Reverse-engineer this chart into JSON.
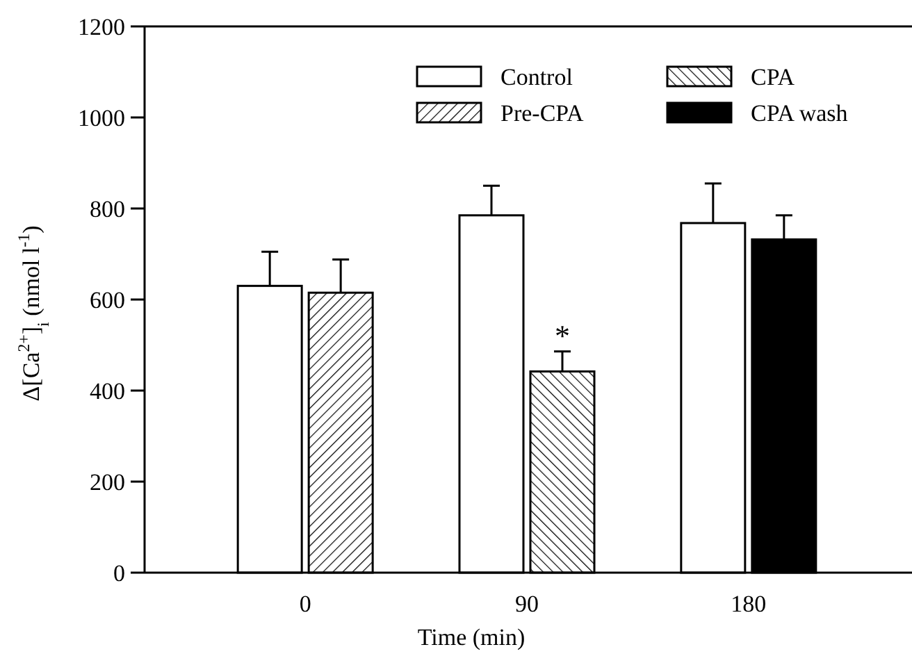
{
  "chart_data": {
    "type": "bar",
    "xlabel": "Time (min)",
    "ylabel": "Δ[Ca$^{2+}$]$_{i}$ (nmol l$^{-1}$)",
    "categories": [
      "0",
      "90",
      "180"
    ],
    "series": [
      {
        "name": "Control",
        "color": "#ffffff",
        "values": [
          630,
          785,
          768
        ],
        "errors": [
          75,
          65,
          87
        ]
      },
      {
        "name": "Pre-CPA",
        "color": "#000000",
        "values": [
          615,
          null,
          null
        ],
        "errors": [
          73,
          null,
          null
        ]
      },
      {
        "name": "CPA",
        "color": "#000000",
        "values": [
          null,
          442,
          null
        ],
        "errors": [
          null,
          44,
          null
        ]
      },
      {
        "name": "CPA wash",
        "color": "#000000",
        "values": [
          null,
          null,
          732
        ],
        "errors": [
          null,
          null,
          53
        ]
      }
    ],
    "ylim": [
      0,
      1200
    ],
    "yticks": [
      0,
      200,
      400,
      600,
      800,
      1000,
      1200
    ],
    "annotations": [
      {
        "text": "*",
        "x": "90",
        "y": 486
      }
    ],
    "legend": "top right",
    "grid": false
  }
}
